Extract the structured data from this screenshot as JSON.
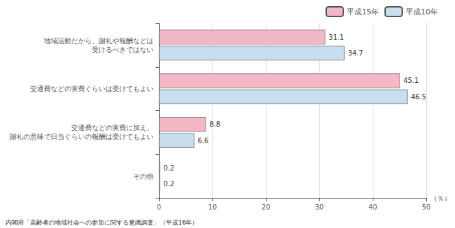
{
  "chart_data": {
    "type": "bar",
    "orientation": "horizontal",
    "categories": [
      "地域活動だから、謝礼や報酬などは\n受けるべきではない",
      "交通費などの実費ぐらいは受けてもよい",
      "交通費などの実費に加え、\n謝礼の意味で日当ぐらいの報酬は受けてもよい",
      "その他"
    ],
    "series": [
      {
        "name": "平成15年",
        "color": "#f2b8c6",
        "values": [
          31.1,
          45.1,
          8.8,
          0.2
        ]
      },
      {
        "name": "平成10年",
        "color": "#c8dff0",
        "values": [
          34.7,
          46.5,
          6.6,
          0.2
        ]
      }
    ],
    "xlabel": "（％）",
    "xlim": [
      0,
      50
    ],
    "xticks": [
      0,
      10,
      20,
      30,
      40,
      50
    ],
    "grid": true,
    "legend": "upper right",
    "data_labels": true,
    "annotations": [
      "内閣府「高齢者の地域社会への参加に関する意識調査」（平成16年）"
    ]
  }
}
